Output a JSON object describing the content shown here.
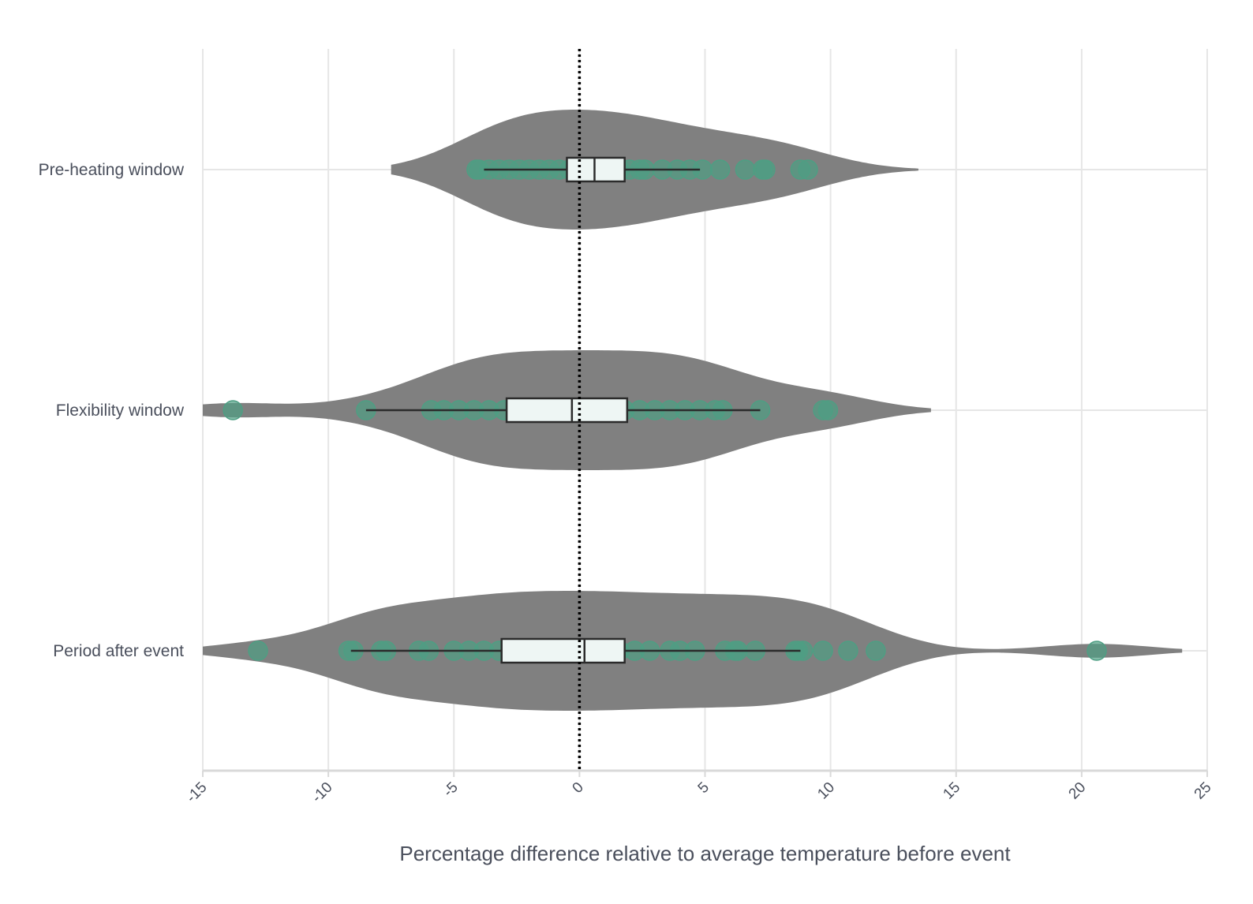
{
  "chart_data": {
    "type": "violin",
    "title": "",
    "xlabel": "Percentage difference relative to average temperature before event",
    "ylabel": "",
    "xlim": [
      -15,
      25
    ],
    "xticks": [
      -15,
      -10,
      -5,
      0,
      5,
      10,
      15,
      20,
      25
    ],
    "reference_line": 0,
    "grid": true,
    "colors": {
      "violin": "#808080",
      "points": "#4e9e83",
      "box_fill": "#eef6f4",
      "box_stroke": "#2b2b2b",
      "grid": "#e6e6e6",
      "reference_line": "#000000"
    },
    "categories": [
      "Pre-heating window",
      "Flexibility window",
      "Period after event"
    ],
    "series": [
      {
        "category": "Pre-heating window",
        "box": {
          "whisker_low": -3.8,
          "q1": -0.5,
          "median": 0.6,
          "q3": 1.8,
          "whisker_high": 4.8
        },
        "violin_range": [
          -7.5,
          13.5
        ],
        "points": [
          -4.1,
          -4.0,
          -3.6,
          -3.2,
          -2.8,
          -2.4,
          -2.0,
          -1.6,
          -1.2,
          -0.8,
          -0.4,
          0.0,
          0.4,
          0.8,
          1.2,
          1.6,
          2.0,
          2.4,
          2.6,
          3.3,
          3.9,
          4.4,
          4.9,
          5.6,
          6.6,
          7.3,
          7.4,
          8.8,
          9.1
        ]
      },
      {
        "category": "Flexibility window",
        "box": {
          "whisker_low": -8.5,
          "q1": -2.9,
          "median": -0.3,
          "q3": 1.9,
          "whisker_high": 7.2
        },
        "violin_range": [
          -15.0,
          14.0
        ],
        "points": [
          -13.8,
          -8.5,
          -5.9,
          -5.4,
          -4.8,
          -4.2,
          -3.6,
          -3.0,
          -2.4,
          -1.8,
          -1.2,
          -0.6,
          0.0,
          0.6,
          1.2,
          1.8,
          2.4,
          3.0,
          3.6,
          4.2,
          4.8,
          5.4,
          5.7,
          7.2,
          9.7,
          9.9
        ]
      },
      {
        "category": "Period after event",
        "box": {
          "whisker_low": -9.1,
          "q1": -3.1,
          "median": 0.2,
          "q3": 1.8,
          "whisker_high": 8.8
        },
        "violin_range": [
          -15.0,
          24.0
        ],
        "points": [
          -12.8,
          -9.2,
          -9.0,
          -7.9,
          -7.7,
          -6.4,
          -6.0,
          -5.0,
          -4.4,
          -3.8,
          -3.2,
          -2.6,
          -2.0,
          -1.4,
          -0.8,
          -0.2,
          0.4,
          1.0,
          1.6,
          2.2,
          2.8,
          3.6,
          4.0,
          4.6,
          5.8,
          6.2,
          6.3,
          7.0,
          8.6,
          8.7,
          8.9,
          9.7,
          10.7,
          11.8,
          20.6
        ]
      }
    ]
  }
}
